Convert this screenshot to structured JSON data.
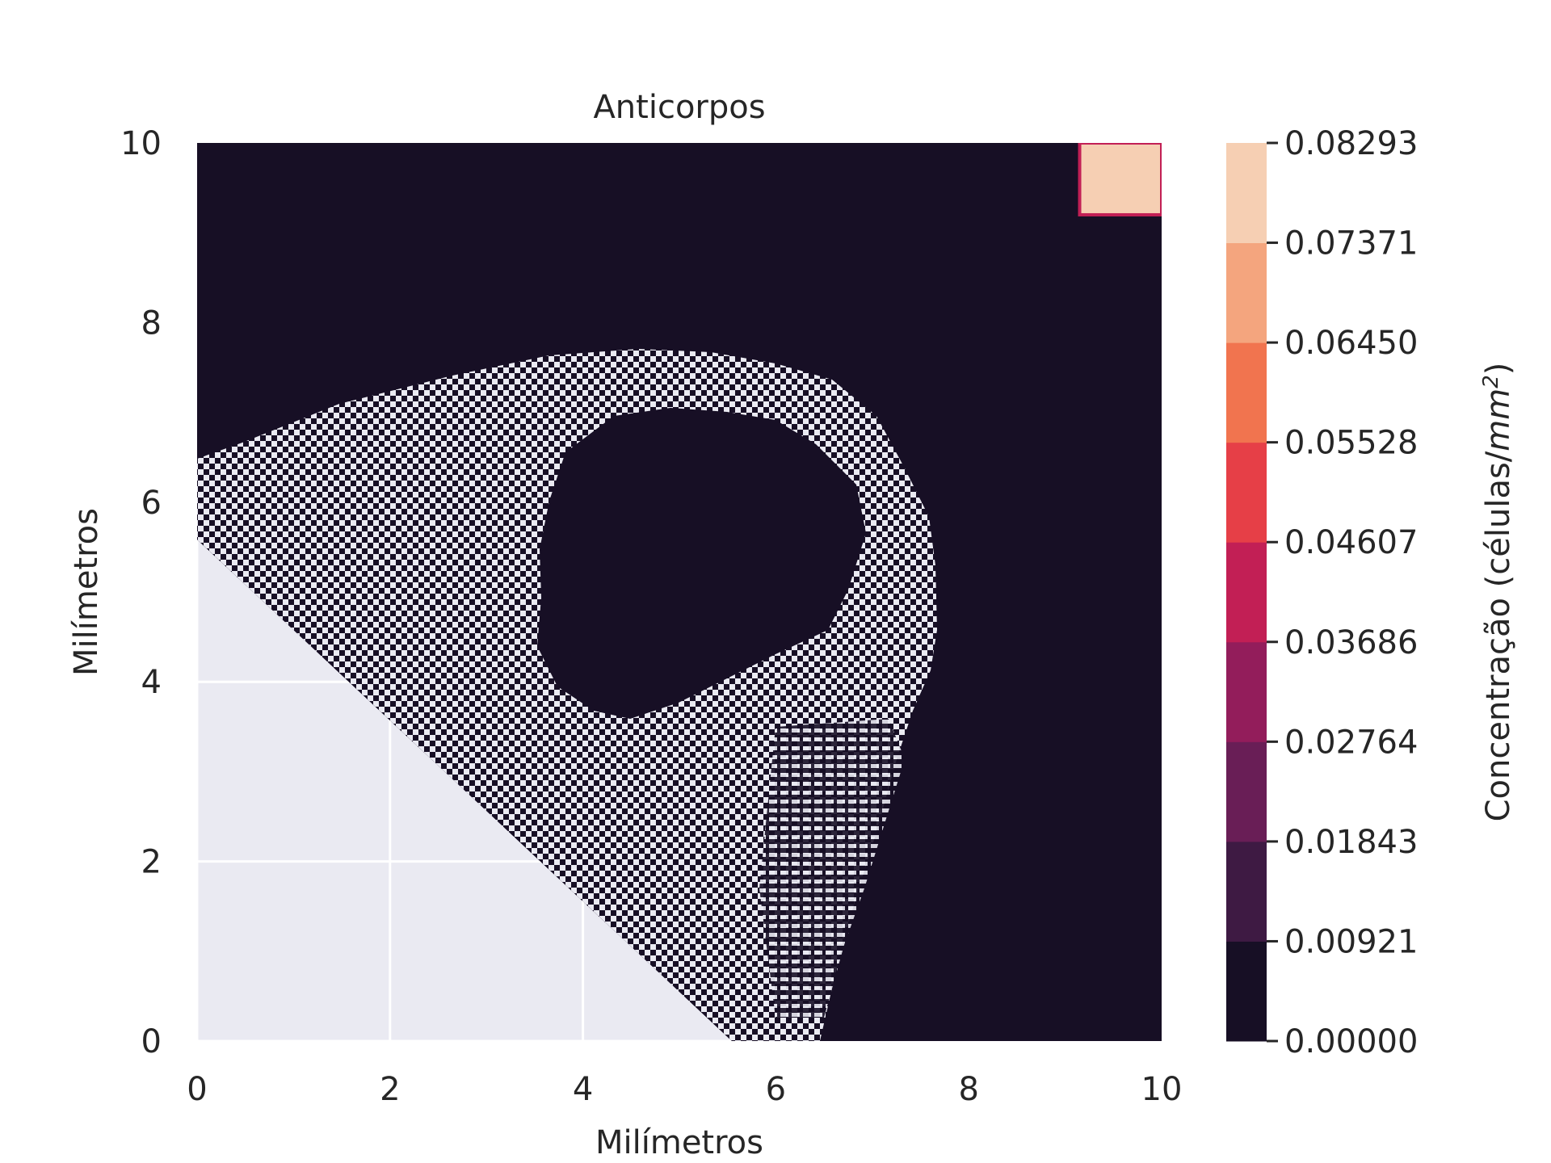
{
  "chart_data": {
    "type": "heatmap",
    "title": "Anticorpos",
    "xlabel": "Milímetros",
    "ylabel": "Milímetros",
    "xlim": [
      0,
      10
    ],
    "ylim": [
      0,
      10
    ],
    "x_ticks": [
      "0",
      "2",
      "4",
      "6",
      "8",
      "10"
    ],
    "y_ticks": [
      "0",
      "2",
      "4",
      "6",
      "8",
      "10"
    ],
    "grid": true,
    "colorbar": {
      "label": "Concentração (células/mm²)",
      "label_main": "Concentração (células/",
      "label_unit": "mm",
      "label_sup": "2",
      "label_close": ")",
      "ticks": [
        "0.00000",
        "0.00921",
        "0.01843",
        "0.02764",
        "0.03686",
        "0.04607",
        "0.05528",
        "0.06450",
        "0.07371",
        "0.08293"
      ],
      "colors": [
        "#170f25",
        "#3e1a43",
        "#691e56",
        "#931d5b",
        "#c21f55",
        "#e63f47",
        "#f1744f",
        "#f4a57e",
        "#f6cfb3"
      ]
    },
    "regions": {
      "background_color": "#170f25",
      "uncovered_color": "#eaeaf2",
      "high_patch": {
        "x": [
          9.15,
          10
        ],
        "y": [
          9.2,
          10
        ],
        "color": "#f6cfb3",
        "border_color": "#c21f55"
      },
      "speckle_light_color": "#eaeaf2",
      "speckle_dark_color": "#170f25"
    }
  }
}
